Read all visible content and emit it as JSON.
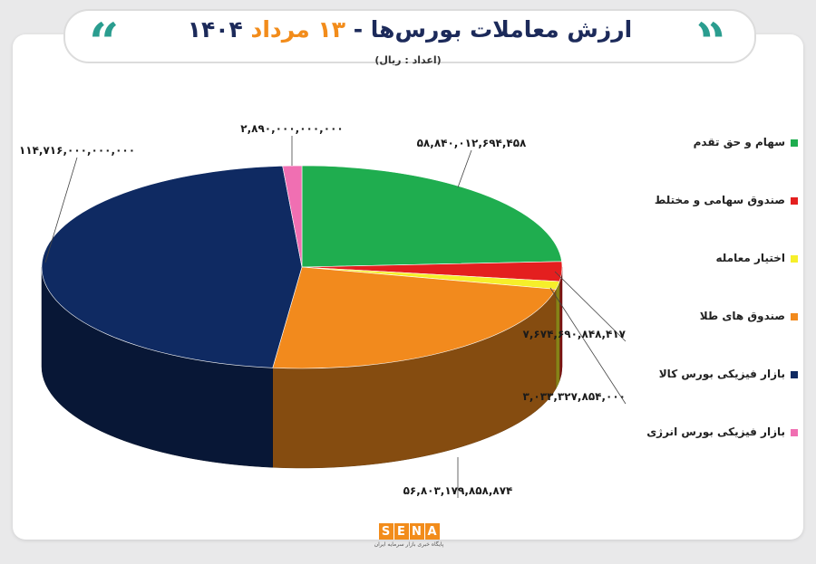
{
  "header": {
    "title_main": "ارزش معاملات بورس‌ها - ",
    "title_accent": "۱۳ مرداد",
    "title_year": "۱۴۰۴",
    "subtitle": "(اعداد : ریال)",
    "quote_left": "“",
    "quote_right": "“"
  },
  "chart_data": {
    "type": "pie",
    "title": "ارزش معاملات بورس‌ها - ۱۳ مرداد ۱۴۰۴",
    "unit": "(اعداد : ریال)",
    "legend_position": "right",
    "slices": [
      {
        "name": "سهام و حق تقدم",
        "value": 58840012694458,
        "label": "۵۸,۸۴۰,۰۱۲,۶۹۴,۴۵۸",
        "color": "#1fad4f"
      },
      {
        "name": "صندوق سهامی و مختلط",
        "value": 7674690848417,
        "label": "۷,۶۷۴,۶۹۰,۸۴۸,۴۱۷",
        "color": "#e41f1f"
      },
      {
        "name": "اختیار معامله",
        "value": 3033327854000,
        "label": "۳,۰۳۳,۳۲۷,۸۵۴,۰۰۰",
        "color": "#f6ef2a"
      },
      {
        "name": "صندوق های طلا",
        "value": 56803179858874,
        "label": "۵۶,۸۰۳,۱۷۹,۸۵۸,۸۷۴",
        "color": "#f28a1d"
      },
      {
        "name": "بازار فیزیکی بورس کالا",
        "value": 114716000000000,
        "label": "۱۱۴,۷۱۶,۰۰۰,۰۰۰,۰۰۰",
        "color": "#0f2a62"
      },
      {
        "name": "بازار فیزیکی بورس انرژی",
        "value": 2890000000000,
        "label": "۲,۸۹۰,۰۰۰,۰۰۰,۰۰۰",
        "color": "#f06fb2"
      }
    ]
  },
  "legend": {
    "items": [
      {
        "label": "سهام و حق تقدم",
        "color": "#1fad4f"
      },
      {
        "label": "صندوق سهامی و مختلط",
        "color": "#e41f1f"
      },
      {
        "label": "اختیار معامله",
        "color": "#f6ef2a"
      },
      {
        "label": "صندوق های طلا",
        "color": "#f28a1d"
      },
      {
        "label": "بازار فیزیکی بورس کالا",
        "color": "#0f2a62"
      },
      {
        "label": "بازار فیزیکی بورس انرژی",
        "color": "#f06fb2"
      }
    ]
  },
  "logo": {
    "letters": [
      "S",
      "E",
      "N",
      "A"
    ],
    "tagline": "پایگاه خبری بازار سرمایه ایران"
  }
}
